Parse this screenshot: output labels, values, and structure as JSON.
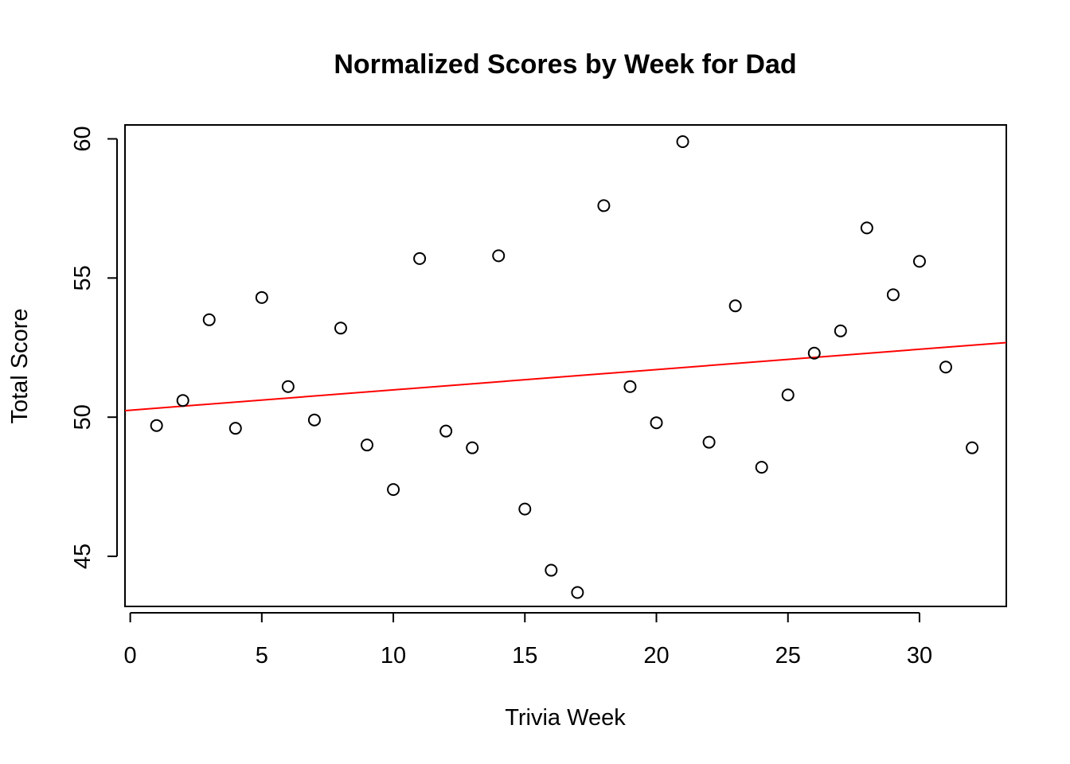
{
  "chart_data": {
    "type": "scatter",
    "title": "Normalized Scores by Week for Dad",
    "xlabel": "Trivia Week",
    "ylabel": "Total Score",
    "xlim": [
      -0.2,
      33.3
    ],
    "ylim": [
      43.2,
      60.5
    ],
    "x_ticks": [
      0,
      5,
      10,
      15,
      20,
      25,
      30
    ],
    "y_ticks": [
      45,
      50,
      55,
      60
    ],
    "grid": false,
    "legend": "none",
    "series": [
      {
        "x": [
          1,
          2,
          3,
          4,
          5,
          6,
          7,
          8,
          9,
          10,
          11,
          12,
          13,
          14,
          15,
          16,
          17,
          18,
          19,
          20,
          21,
          22,
          23,
          24,
          25,
          26,
          27,
          28,
          29,
          30,
          31,
          32
        ],
        "y": [
          49.7,
          50.6,
          53.5,
          49.6,
          54.3,
          51.1,
          49.9,
          53.2,
          49.0,
          47.4,
          55.7,
          49.5,
          48.9,
          55.8,
          46.7,
          44.5,
          43.7,
          57.6,
          51.1,
          49.8,
          59.9,
          49.1,
          54.0,
          48.2,
          50.8,
          52.3,
          53.1,
          56.8,
          54.4,
          55.6,
          51.8,
          48.9
        ]
      }
    ],
    "trend_line": {
      "intercept": 50.25,
      "slope": 0.073,
      "color": "#ff0000"
    },
    "colors": {
      "points": "#000000",
      "trend": "#ff0000"
    }
  }
}
